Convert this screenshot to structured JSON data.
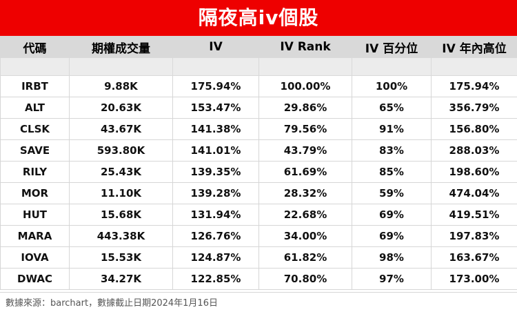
{
  "title": "隔夜高iv個股",
  "columns": [
    "代碼",
    "期權成交量",
    "IV",
    "IV Rank",
    "IV 百分位",
    "IV 年內高位"
  ],
  "rows": [
    [
      "IRBT",
      "9.88K",
      "175.94%",
      "100.00%",
      "100%",
      "175.94%"
    ],
    [
      "ALT",
      "20.63K",
      "153.47%",
      "29.86%",
      "65%",
      "356.79%"
    ],
    [
      "CLSK",
      "43.67K",
      "141.38%",
      "79.56%",
      "91%",
      "156.80%"
    ],
    [
      "SAVE",
      "593.80K",
      "141.01%",
      "43.79%",
      "83%",
      "288.03%"
    ],
    [
      "RILY",
      "25.43K",
      "139.35%",
      "61.69%",
      "85%",
      "198.60%"
    ],
    [
      "MOR",
      "11.10K",
      "139.28%",
      "28.32%",
      "59%",
      "474.04%"
    ],
    [
      "HUT",
      "15.68K",
      "131.94%",
      "22.68%",
      "69%",
      "419.51%"
    ],
    [
      "MARA",
      "443.38K",
      "126.76%",
      "34.00%",
      "69%",
      "197.83%"
    ],
    [
      "IOVA",
      "15.53K",
      "124.87%",
      "61.82%",
      "98%",
      "163.67%"
    ],
    [
      "DWAC",
      "34.27K",
      "122.85%",
      "70.80%",
      "97%",
      "173.00%"
    ]
  ],
  "footer": "數據來源：barchart，數據截止日期2024年1月16日",
  "colors": {
    "title_bg": "#ee0000",
    "header_bg": "#d9d9d9"
  }
}
